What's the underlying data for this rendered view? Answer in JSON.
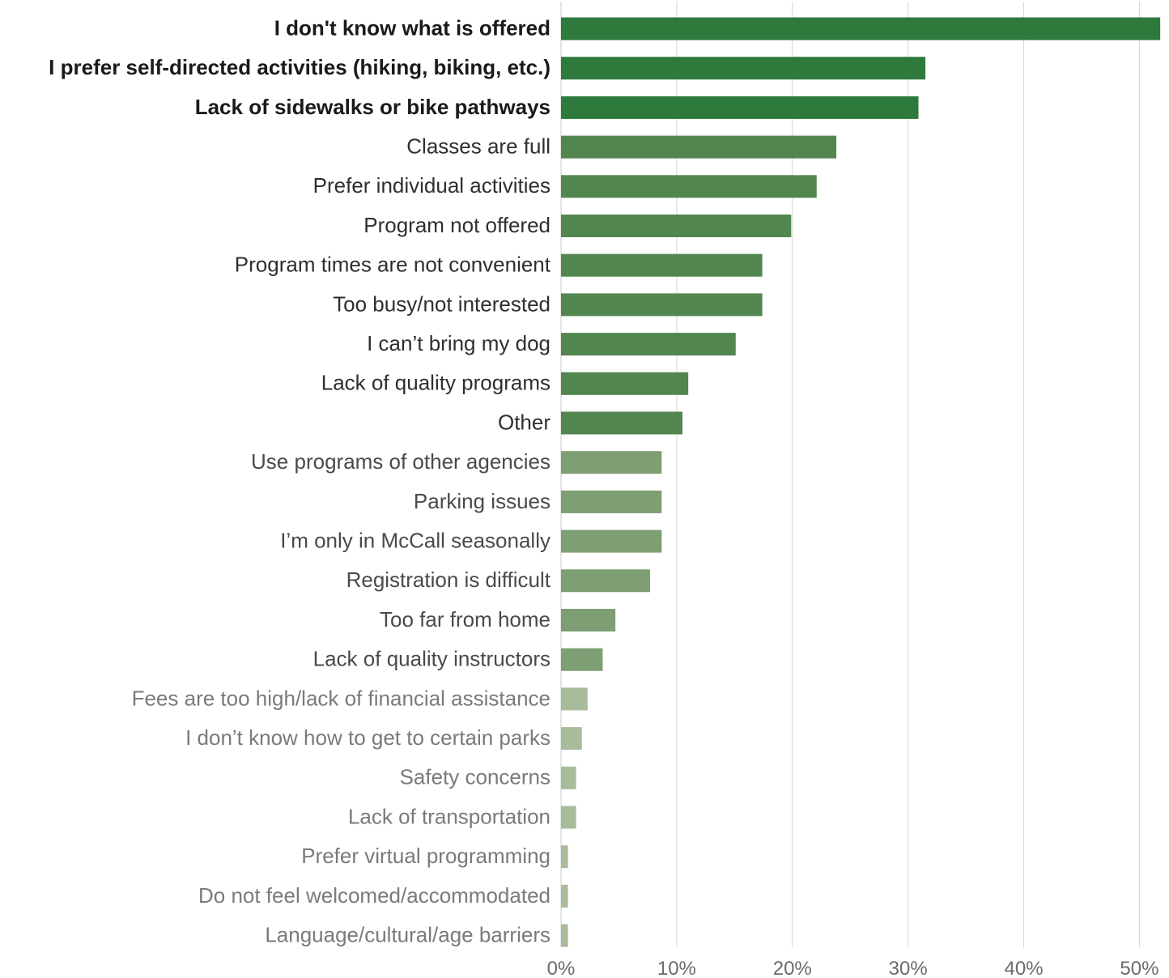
{
  "chart_data": {
    "type": "bar",
    "orientation": "horizontal",
    "title": "",
    "xlabel": "",
    "ylabel": "",
    "xlim": [
      0,
      52
    ],
    "grid": "vertical",
    "legend": "none",
    "x_ticks": [
      {
        "value": 0,
        "label": "0%"
      },
      {
        "value": 10,
        "label": "10%"
      },
      {
        "value": 20,
        "label": "20%"
      },
      {
        "value": 30,
        "label": "30%"
      },
      {
        "value": 40,
        "label": "40%"
      },
      {
        "value": 50,
        "label": "50%"
      }
    ],
    "tiers": [
      {
        "bar_color": "#2e7a3c",
        "label_color": "#1a1a1a",
        "label_weight": "bold"
      },
      {
        "bar_color": "#52864f",
        "label_color": "#2f2f2f",
        "label_weight": "normal"
      },
      {
        "bar_color": "#7e9e73",
        "label_color": "#4a4a4a",
        "label_weight": "normal"
      },
      {
        "bar_color": "#a8bc9c",
        "label_color": "#7a7a7a",
        "label_weight": "normal"
      }
    ],
    "categories": [
      "I don't know what is offered",
      "I prefer self-directed activities (hiking, biking, etc.)",
      "Lack of sidewalks or bike pathways",
      "Classes are full",
      "Prefer individual activities",
      "Program not offered",
      "Program times are not convenient",
      "Too busy/not interested",
      "I can’t bring my dog",
      "Lack of quality programs",
      "Other",
      "Use programs of other agencies",
      "Parking issues",
      "I’m only in McCall seasonally",
      "Registration is difficult",
      "Too far from home",
      "Lack of quality instructors",
      "Fees are too high/lack of financial assistance",
      "I don’t know how to get to certain parks",
      "Safety concerns",
      "Lack of transportation",
      "Prefer virtual programming",
      "Do not feel welcomed/accommodated",
      "Language/cultural/age barriers"
    ],
    "values": [
      51.8,
      31.5,
      30.9,
      23.8,
      22.1,
      19.9,
      17.4,
      17.4,
      15.1,
      11.0,
      10.5,
      8.7,
      8.7,
      8.7,
      7.7,
      4.7,
      3.6,
      2.3,
      1.8,
      1.3,
      1.3,
      0.6,
      0.6,
      0.6
    ],
    "tier_index": [
      0,
      0,
      0,
      1,
      1,
      1,
      1,
      1,
      1,
      1,
      1,
      2,
      2,
      2,
      2,
      2,
      2,
      3,
      3,
      3,
      3,
      3,
      3,
      3
    ]
  }
}
